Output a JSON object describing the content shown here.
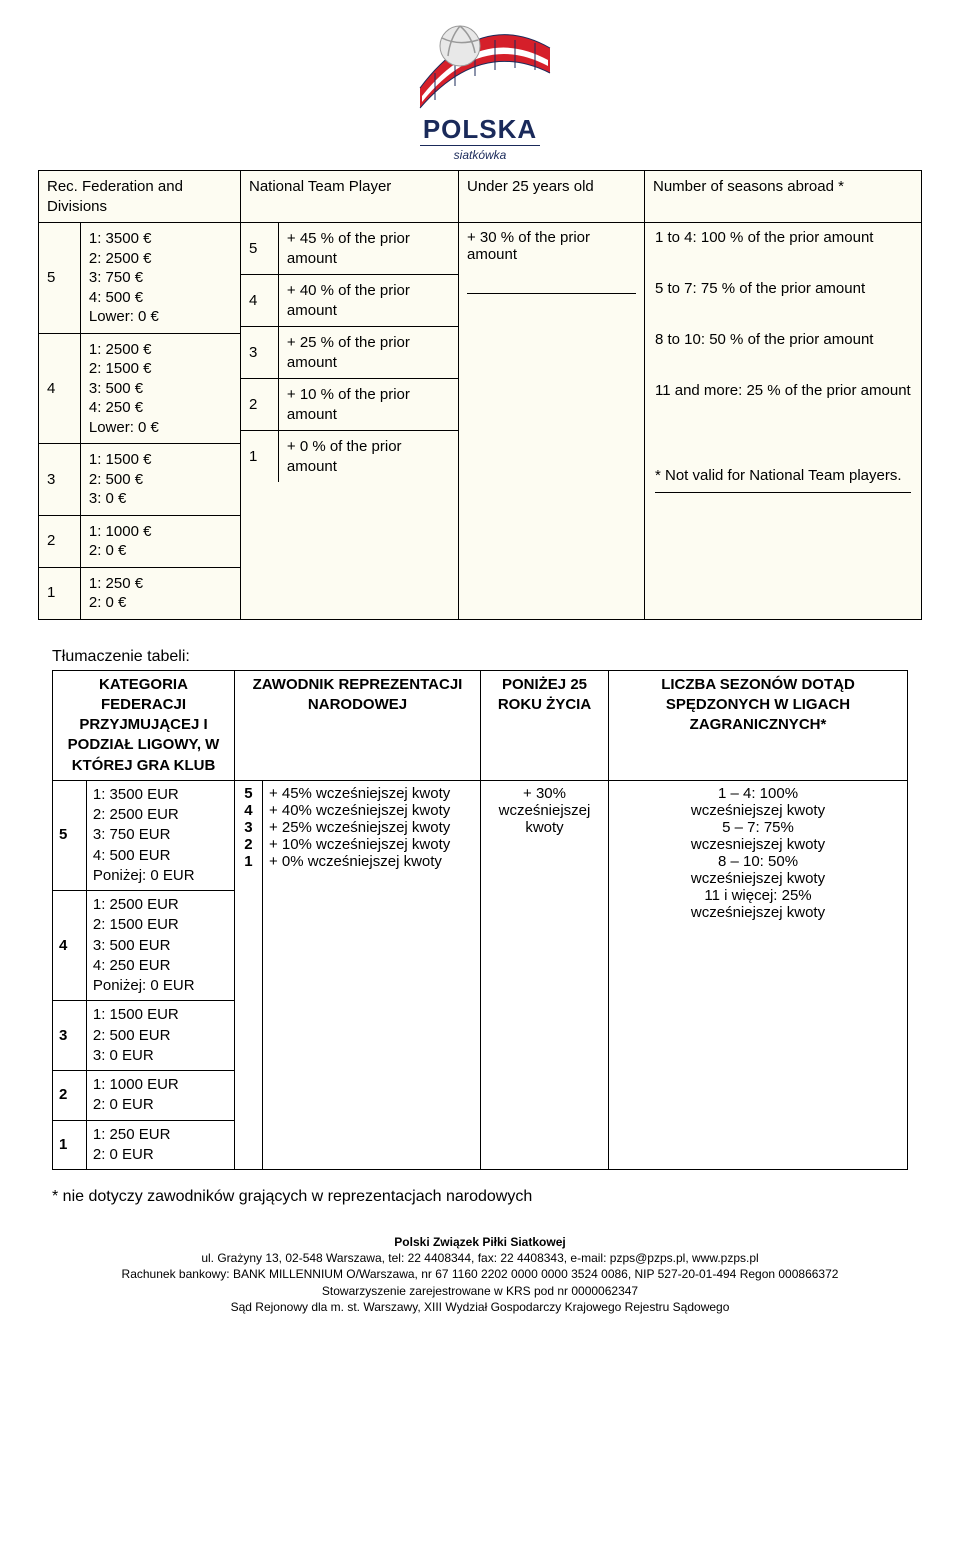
{
  "logo": {
    "main": "POLSKA",
    "sub": "siatkówka",
    "colors": {
      "red": "#d51f2a",
      "blue": "#1a2a5a",
      "white": "#ffffff",
      "gray": "#bfbfbf"
    }
  },
  "scan": {
    "background": "#fdfcf2",
    "headers": {
      "col1": "Rec. Federation and Divisions",
      "col2": "National Team Player",
      "col3": "Under 25 years old",
      "col4": "Number of seasons abroad *"
    },
    "col1_rows": [
      {
        "idx": "5",
        "lines": [
          "1: 3500 €",
          "2: 2500 €",
          "3: 750 €",
          "4: 500 €",
          "Lower: 0 €"
        ]
      },
      {
        "idx": "4",
        "lines": [
          "1: 2500 €",
          "2: 1500 €",
          "3: 500 €",
          "4: 250 €",
          "Lower: 0 €"
        ]
      },
      {
        "idx": "3",
        "lines": [
          "1: 1500 €",
          "2: 500 €",
          "3: 0 €"
        ]
      },
      {
        "idx": "2",
        "lines": [
          "1: 1000 €",
          "2: 0 €"
        ]
      },
      {
        "idx": "1",
        "lines": [
          "1: 250 €",
          "2: 0 €"
        ]
      }
    ],
    "col2_rows": [
      {
        "idx": "5",
        "text": "+ 45 % of the prior amount"
      },
      {
        "idx": "4",
        "text": "+ 40 % of the prior amount"
      },
      {
        "idx": "3",
        "text": "+ 25 % of the prior amount"
      },
      {
        "idx": "2",
        "text": "+ 10 % of the prior amount"
      },
      {
        "idx": "1",
        "text": "+ 0 % of the prior amount"
      }
    ],
    "col3_text": "+ 30 % of the prior amount",
    "col4_lines": [
      "1 to 4: 100 % of the prior amount",
      "",
      "5 to 7: 75 % of the prior amount",
      "",
      "8 to 10: 50 % of the prior amount",
      "",
      "11 and more: 25 % of the prior amount",
      "",
      "",
      "* Not valid for National Team players."
    ]
  },
  "trans": {
    "title": "Tłumaczenie tabeli:",
    "headers": {
      "col1": "KATEGORIA FEDERACJI PRZYJMUJĄCEJ I PODZIAŁ LIGOWY, W KTÓREJ GRA KLUB",
      "col2": "ZAWODNIK REPREZENTACJI NARODOWEJ",
      "col3": "PONIŻEJ 25 ROKU ŻYCIA",
      "col4": "LICZBA SEZONÓW DOTĄD SPĘDZONYCH W LIGACH ZAGRANICZNYCH*"
    },
    "col1_rows": [
      {
        "idx": "5",
        "lines": [
          "1: 3500 EUR",
          "2: 2500 EUR",
          "3: 750 EUR",
          "4: 500 EUR",
          "Poniżej: 0 EUR"
        ]
      },
      {
        "idx": "4",
        "lines": [
          "1: 2500 EUR",
          "2: 1500 EUR",
          "3: 500 EUR",
          "4: 250 EUR",
          "Poniżej: 0 EUR"
        ]
      },
      {
        "idx": "3",
        "lines": [
          "1: 1500 EUR",
          "2: 500 EUR",
          "3: 0 EUR"
        ]
      },
      {
        "idx": "2",
        "lines": [
          "1: 1000 EUR",
          "2: 0 EUR"
        ]
      },
      {
        "idx": "1",
        "lines": [
          "1: 250 EUR",
          "2: 0 EUR"
        ]
      }
    ],
    "col2_idx": [
      "5",
      "4",
      "3",
      "2",
      "1"
    ],
    "col2_lines": [
      "+ 45% wcześniejszej kwoty",
      "+ 40% wcześniejszej kwoty",
      "+ 25% wcześniejszej kwoty",
      "+ 10% wcześniejszej kwoty",
      "+ 0% wcześniejszej kwoty"
    ],
    "col3_text": "+ 30% wcześniejszej kwoty",
    "col4_lines": [
      "1 – 4: 100%",
      "wcześniejszej kwoty",
      "5 – 7: 75%",
      "wczesniejszej kwoty",
      "8 – 10: 50%",
      "wcześniejszej kwoty",
      "11 i więcej: 25%",
      "wcześniejszej kwoty"
    ]
  },
  "footnote": "* nie dotyczy zawodników grających w reprezentacjach narodowych",
  "footer": {
    "l1": "Polski Związek Piłki Siatkowej",
    "l2": "ul. Grażyny 13, 02-548 Warszawa, tel: 22 4408344, fax: 22 4408343, e-mail: pzps@pzps.pl, www.pzps.pl",
    "l3": "Rachunek bankowy: BANK MILLENNIUM O/Warszawa, nr 67 1160 2202 0000 0000 3524 0086, NIP 527-20-01-494 Regon 000866372",
    "l4": "Stowarzyszenie zarejestrowane w KRS pod nr 0000062347",
    "l5": "Sąd Rejonowy dla m. st. Warszawy, XIII Wydział Gospodarczy Krajowego Rejestru Sądowego"
  }
}
